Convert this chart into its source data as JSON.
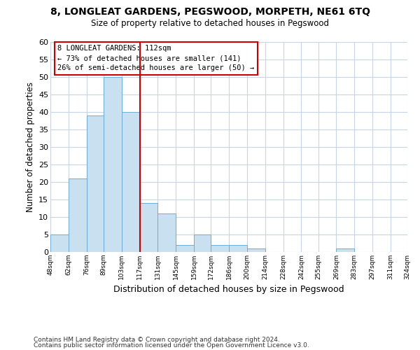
{
  "title": "8, LONGLEAT GARDENS, PEGSWOOD, MORPETH, NE61 6TQ",
  "subtitle": "Size of property relative to detached houses in Pegswood",
  "xlabel": "Distribution of detached houses by size in Pegswood",
  "ylabel": "Number of detached properties",
  "bar_edges": [
    48,
    62,
    76,
    89,
    103,
    117,
    131,
    145,
    159,
    172,
    186,
    200,
    214,
    228,
    242,
    255,
    269,
    283,
    297,
    311,
    324
  ],
  "bar_heights": [
    5,
    21,
    39,
    50,
    40,
    14,
    11,
    2,
    5,
    2,
    2,
    1,
    0,
    0,
    0,
    0,
    1,
    0,
    0,
    0
  ],
  "bar_color": "#c8e0f0",
  "bar_edgecolor": "#6baed6",
  "vline_x": 117,
  "vline_color": "#cc0000",
  "ylim": [
    0,
    60
  ],
  "annotation_title": "8 LONGLEAT GARDENS: 112sqm",
  "annotation_line1": "← 73% of detached houses are smaller (141)",
  "annotation_line2": "26% of semi-detached houses are larger (50) →",
  "tick_labels": [
    "48sqm",
    "62sqm",
    "76sqm",
    "89sqm",
    "103sqm",
    "117sqm",
    "131sqm",
    "145sqm",
    "159sqm",
    "172sqm",
    "186sqm",
    "200sqm",
    "214sqm",
    "228sqm",
    "242sqm",
    "255sqm",
    "269sqm",
    "283sqm",
    "297sqm",
    "311sqm",
    "324sqm"
  ],
  "footnote1": "Contains HM Land Registry data © Crown copyright and database right 2024.",
  "footnote2": "Contains public sector information licensed under the Open Government Licence v3.0.",
  "background_color": "#ffffff",
  "grid_color": "#c8d4e8"
}
